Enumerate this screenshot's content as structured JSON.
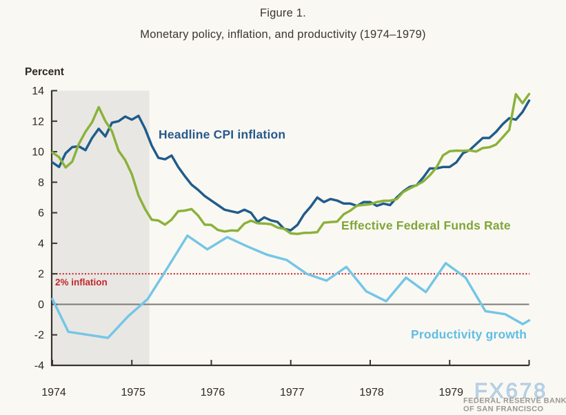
{
  "figure": {
    "label": "Figure 1.",
    "title": "Monetary policy, inflation, and productivity (1974–1979)"
  },
  "y_axis_title": "Percent",
  "watermark": {
    "brand": "FX678",
    "org_line1": "FEDERAL RESERVE BANK",
    "org_line2": "OF SAN FRANCISCO"
  },
  "colors": {
    "cpi": "#1f5c8b",
    "cpi_label": "#27598c",
    "ffr": "#8ab23a",
    "ffr_label": "#7fa637",
    "productivity": "#74c6e6",
    "productivity_label": "#5fbde4",
    "target": "#c1272d",
    "zero_line": "#7d7a76",
    "recession_band": "#e9e7e3",
    "axis": "#36322d",
    "background": "#faf8f3",
    "watermark_blue": "#b9d5eb",
    "watermark_blue_edge": "#8fb6d7"
  },
  "chart_data": {
    "type": "line",
    "title": "Monetary policy, inflation, and productivity (1974–1979)",
    "xlabel": "",
    "ylabel": "Percent",
    "ylim": [
      -4,
      14
    ],
    "xlim": [
      1974,
      1980
    ],
    "grid": false,
    "legend_position": "inline-labels",
    "x_ticks": [
      1974,
      1975,
      1976,
      1977,
      1978,
      1979,
      1980
    ],
    "x_tick_labels": [
      "1974",
      "1975",
      "1976",
      "1977",
      "1978",
      "1979",
      ""
    ],
    "y_ticks": [
      -4,
      -2,
      0,
      2,
      4,
      6,
      8,
      10,
      12,
      14
    ],
    "recession_shading": {
      "from": 1974.0,
      "to": 1975.22
    },
    "reference_line": {
      "label": "2% inflation",
      "value": 2
    },
    "series": [
      {
        "id": "cpi",
        "name": "Headline CPI inflation",
        "unit": "percent",
        "x_start": 1974.0,
        "x_step": 0.0833333,
        "values": [
          9.3,
          9.0,
          9.9,
          10.3,
          10.35,
          10.1,
          10.9,
          11.5,
          11.0,
          11.9,
          12.0,
          12.3,
          12.1,
          12.35,
          11.5,
          10.4,
          9.6,
          9.5,
          9.75,
          9.0,
          8.4,
          7.85,
          7.5,
          7.1,
          6.8,
          6.5,
          6.2,
          6.1,
          6.0,
          6.2,
          6.0,
          5.4,
          5.7,
          5.5,
          5.4,
          4.95,
          4.85,
          5.2,
          5.9,
          6.4,
          7.0,
          6.7,
          6.9,
          6.8,
          6.6,
          6.6,
          6.45,
          6.7,
          6.7,
          6.45,
          6.6,
          6.5,
          7.0,
          7.4,
          7.7,
          7.8,
          8.3,
          8.9,
          8.9,
          9.0,
          9.0,
          9.3,
          9.9,
          10.1,
          10.5,
          10.9,
          10.9,
          11.3,
          11.8,
          12.2,
          12.1,
          12.6,
          13.35
        ]
      },
      {
        "id": "ffr",
        "name": "Effective Federal Funds Rate",
        "unit": "percent",
        "x_start": 1974.0,
        "x_step": 0.0833333,
        "values": [
          9.95,
          9.65,
          8.97,
          9.35,
          10.51,
          11.31,
          11.93,
          12.92,
          12.01,
          11.34,
          10.06,
          9.45,
          8.53,
          7.13,
          6.24,
          5.54,
          5.49,
          5.22,
          5.55,
          6.1,
          6.14,
          6.24,
          5.82,
          5.22,
          5.2,
          4.87,
          4.77,
          4.84,
          4.82,
          5.29,
          5.48,
          5.31,
          5.29,
          5.25,
          5.03,
          4.95,
          4.65,
          4.61,
          4.68,
          4.69,
          4.73,
          5.35,
          5.39,
          5.42,
          5.9,
          6.14,
          6.47,
          6.51,
          6.56,
          6.7,
          6.78,
          6.79,
          6.89,
          7.36,
          7.6,
          7.81,
          8.04,
          8.45,
          8.96,
          9.76,
          10.03,
          10.07,
          10.06,
          10.09,
          10.01,
          10.24,
          10.29,
          10.47,
          10.94,
          11.43,
          13.77,
          13.18,
          13.78
        ]
      },
      {
        "id": "productivity",
        "name": "Productivity growth",
        "unit": "percent",
        "points": [
          [
            1974.0,
            0.35
          ],
          [
            1974.2,
            -1.8
          ],
          [
            1974.45,
            -2.0
          ],
          [
            1974.7,
            -2.2
          ],
          [
            1974.95,
            -0.8
          ],
          [
            1975.2,
            0.35
          ],
          [
            1975.45,
            2.4
          ],
          [
            1975.7,
            4.5
          ],
          [
            1975.95,
            3.6
          ],
          [
            1976.2,
            4.4
          ],
          [
            1976.45,
            3.8
          ],
          [
            1976.7,
            3.25
          ],
          [
            1976.95,
            2.9
          ],
          [
            1977.2,
            2.0
          ],
          [
            1977.45,
            1.55
          ],
          [
            1977.7,
            2.45
          ],
          [
            1977.95,
            0.85
          ],
          [
            1978.2,
            0.2
          ],
          [
            1978.45,
            1.75
          ],
          [
            1978.7,
            0.8
          ],
          [
            1978.95,
            2.7
          ],
          [
            1979.2,
            1.75
          ],
          [
            1979.45,
            -0.45
          ],
          [
            1979.7,
            -0.65
          ],
          [
            1979.92,
            -1.3
          ],
          [
            1980.0,
            -1.05
          ]
        ]
      }
    ]
  }
}
